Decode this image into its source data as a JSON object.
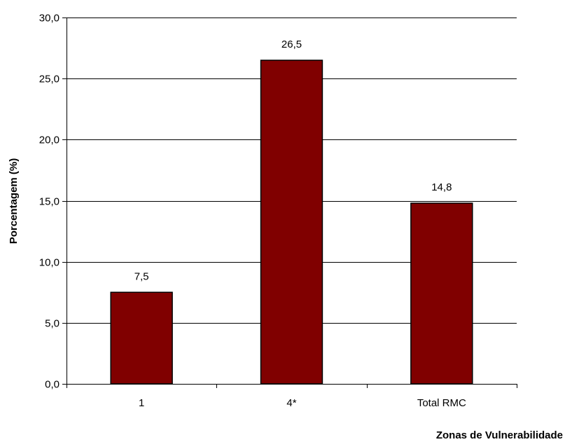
{
  "chart_data": {
    "type": "bar",
    "categories": [
      "1",
      "4*",
      "Total RMC"
    ],
    "values": [
      7.5,
      26.5,
      14.8
    ],
    "value_labels": [
      "7,5",
      "26,5",
      "14,8"
    ],
    "title": "",
    "xlabel": "Zonas de Vulnerabilidade",
    "ylabel": "Porcentagem (%)",
    "ylim": [
      0,
      30
    ],
    "yticks": [
      0,
      5,
      10,
      15,
      20,
      25,
      30
    ],
    "ytick_labels": [
      "0,0",
      "5,0",
      "10,0",
      "15,0",
      "20,0",
      "25,0",
      "30,0"
    ],
    "grid": "horizontal",
    "legend": "none",
    "bar_color": "#800000",
    "bar_edge_color": "#000000"
  }
}
